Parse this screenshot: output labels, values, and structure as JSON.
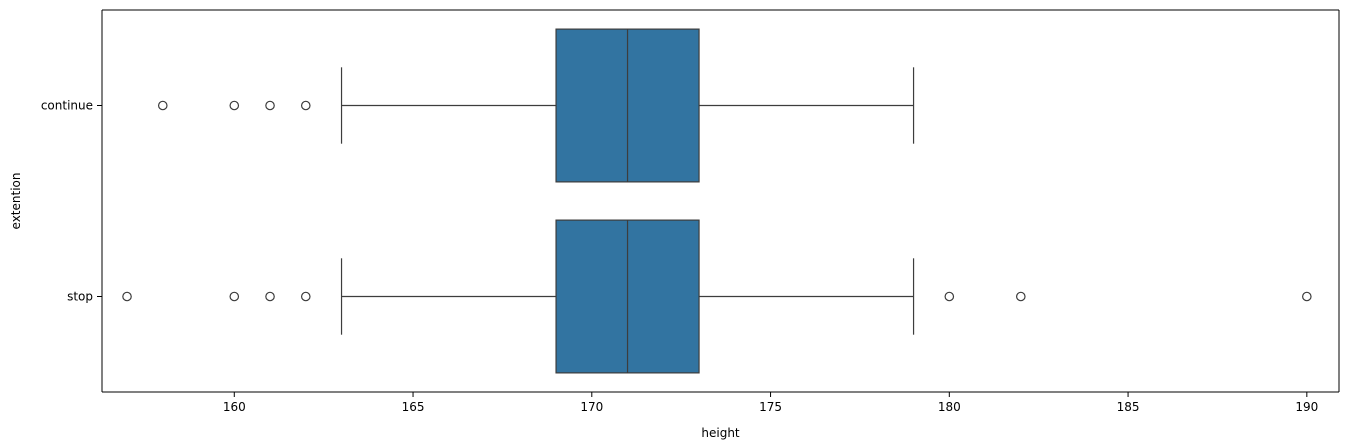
{
  "chart_data": {
    "type": "box",
    "orientation": "horizontal",
    "xlabel": "height",
    "ylabel": "extention",
    "xlim": [
      156.3,
      190.9
    ],
    "x_ticks": [
      160,
      165,
      170,
      175,
      180,
      185,
      190
    ],
    "x_tick_labels": [
      "160",
      "165",
      "170",
      "175",
      "180",
      "185",
      "190"
    ],
    "categories": [
      "continue",
      "stop"
    ],
    "grid": false,
    "legend": "none",
    "colors": {
      "box_fill": "#3274a1",
      "line": "#3d3d3d",
      "axes": "#000000",
      "background": "#ffffff"
    },
    "boxes": [
      {
        "category": "continue",
        "whisker_low": 163,
        "q1": 169,
        "median": 171,
        "q3": 173,
        "whisker_high": 179,
        "outliers": [
          158,
          160,
          161,
          162
        ]
      },
      {
        "category": "stop",
        "whisker_low": 163,
        "q1": 169,
        "median": 171,
        "q3": 173,
        "whisker_high": 179,
        "outliers": [
          157,
          160,
          161,
          162,
          180,
          182,
          190
        ]
      }
    ]
  }
}
